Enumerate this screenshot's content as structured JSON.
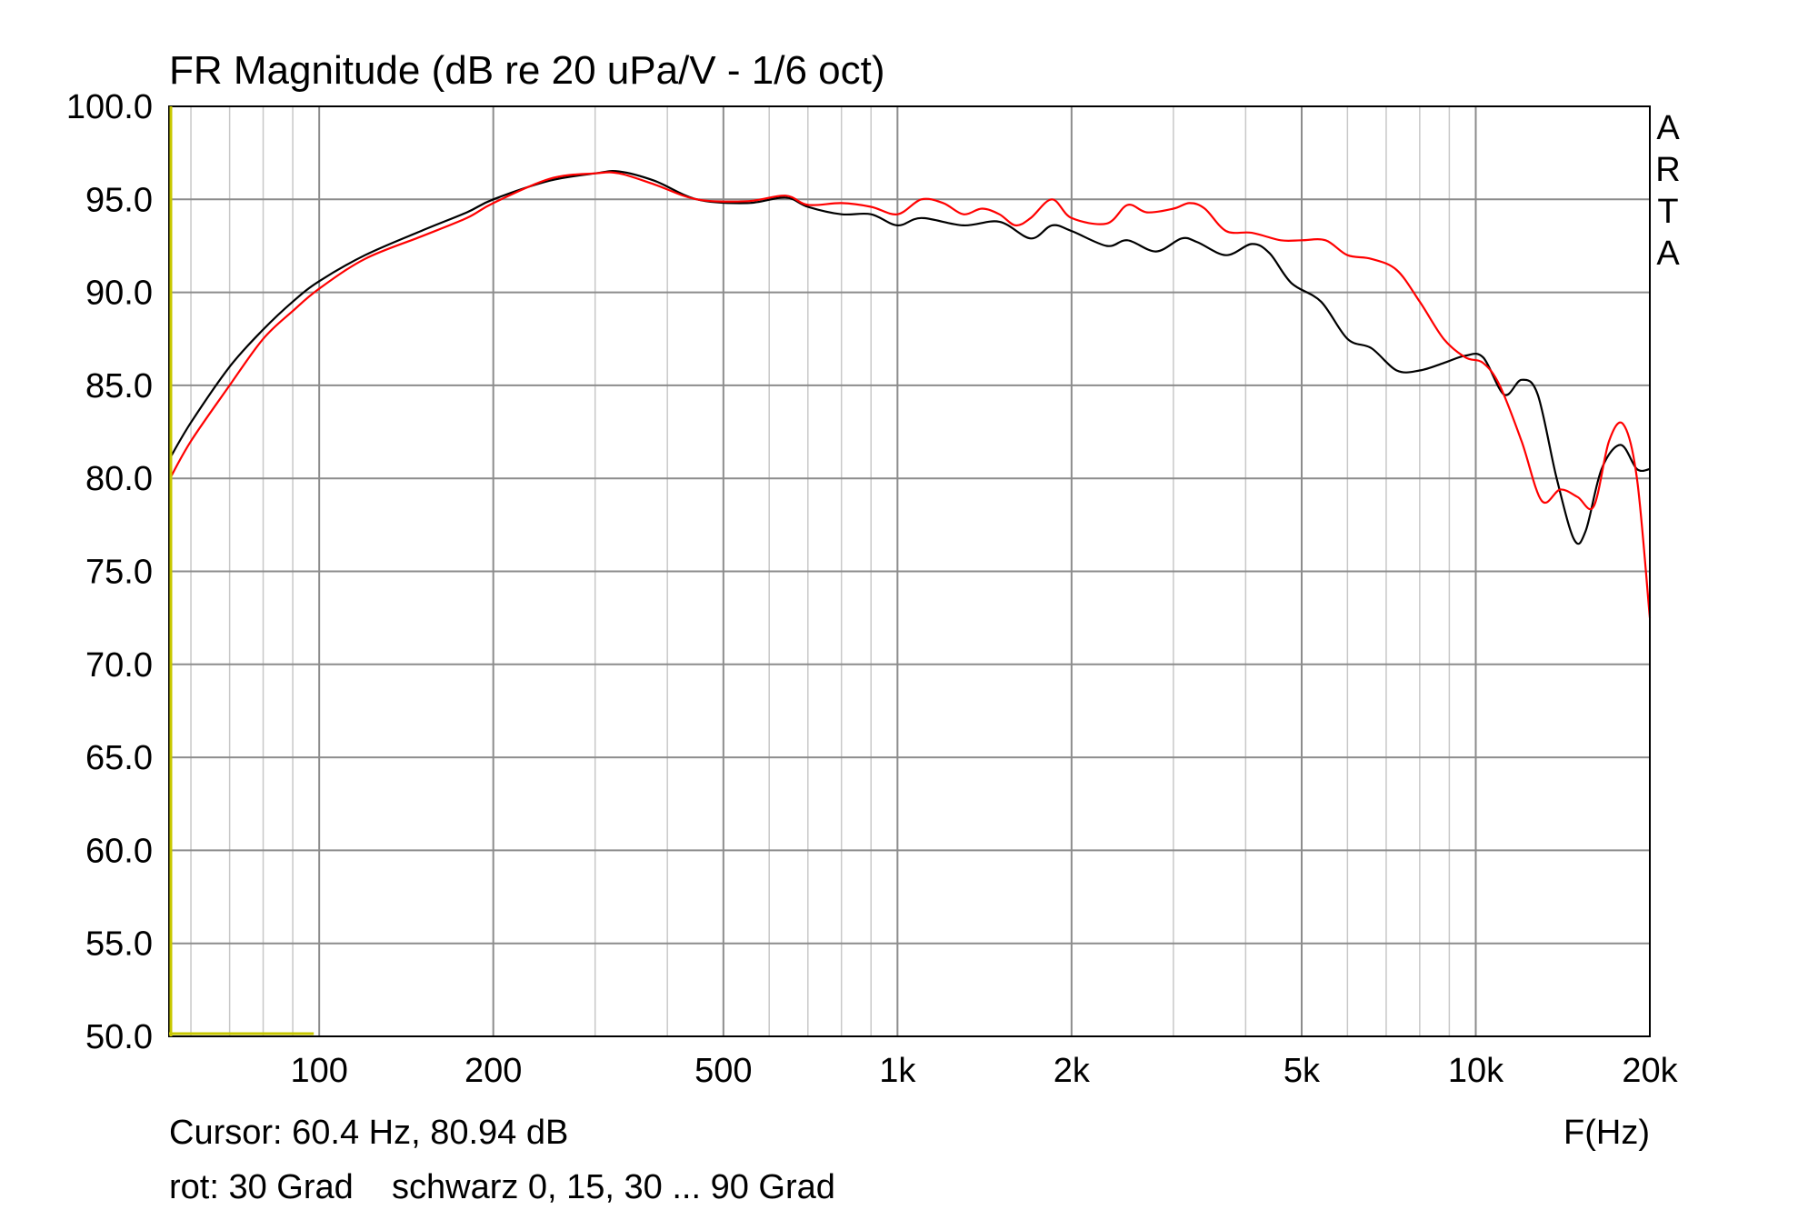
{
  "chart_data": {
    "type": "line",
    "title": "FR Magnitude (dB re 20 uPa/V - 1/6 oct)",
    "xlabel": "F(Hz)",
    "ylabel": "",
    "xscale": "log",
    "xlim": [
      55,
      20000
    ],
    "ylim": [
      50,
      100
    ],
    "grid": true,
    "x_ticks": [
      {
        "value": 100,
        "label": "100"
      },
      {
        "value": 200,
        "label": "200"
      },
      {
        "value": 500,
        "label": "500"
      },
      {
        "value": 1000,
        "label": "1k"
      },
      {
        "value": 2000,
        "label": "2k"
      },
      {
        "value": 5000,
        "label": "5k"
      },
      {
        "value": 10000,
        "label": "10k"
      },
      {
        "value": 20000,
        "label": "20k"
      }
    ],
    "x_minor_grid": [
      60,
      70,
      80,
      90,
      300,
      400,
      600,
      700,
      800,
      900,
      3000,
      4000,
      6000,
      7000,
      8000,
      9000
    ],
    "y_ticks": [
      {
        "value": 100,
        "label": "100.0"
      },
      {
        "value": 95,
        "label": "95.0"
      },
      {
        "value": 90,
        "label": "90.0"
      },
      {
        "value": 85,
        "label": "85.0"
      },
      {
        "value": 80,
        "label": "80.0"
      },
      {
        "value": 75,
        "label": "75.0"
      },
      {
        "value": 70,
        "label": "70.0"
      },
      {
        "value": 65,
        "label": "65.0"
      },
      {
        "value": 60,
        "label": "60.0"
      },
      {
        "value": 55,
        "label": "55.0"
      },
      {
        "value": 50,
        "label": "50.0"
      }
    ],
    "brand_letters": [
      "A",
      "R",
      "T",
      "A"
    ],
    "series": [
      {
        "color": "#000000",
        "x": [
          55,
          60,
          70,
          80,
          90,
          100,
          120,
          150,
          180,
          200,
          250,
          300,
          330,
          380,
          450,
          550,
          640,
          700,
          800,
          900,
          1000,
          1100,
          1300,
          1500,
          1700,
          1850,
          2000,
          2300,
          2500,
          2800,
          3100,
          3300,
          3700,
          4100,
          4400,
          4800,
          5400,
          6000,
          6600,
          7300,
          8000,
          8800,
          9600,
          10300,
          11200,
          12000,
          12800,
          13800,
          14800,
          15500,
          16500,
          17800,
          19000,
          20000
        ],
        "y": [
          81.0,
          83.0,
          86.0,
          88.0,
          89.5,
          90.6,
          92.0,
          93.3,
          94.3,
          95.0,
          96.0,
          96.4,
          96.5,
          96.0,
          95.0,
          94.8,
          95.1,
          94.6,
          94.2,
          94.2,
          93.6,
          94.0,
          93.6,
          93.8,
          92.9,
          93.6,
          93.3,
          92.5,
          92.8,
          92.2,
          92.9,
          92.7,
          92.0,
          92.6,
          92.1,
          90.5,
          89.5,
          87.5,
          87.0,
          85.8,
          85.8,
          86.2,
          86.6,
          86.5,
          84.5,
          85.3,
          84.5,
          80.0,
          76.7,
          77.2,
          80.5,
          81.8,
          80.5,
          80.5
        ]
      },
      {
        "color": "#ff0000",
        "x": [
          55,
          60,
          70,
          80,
          90,
          100,
          120,
          150,
          180,
          200,
          250,
          300,
          330,
          380,
          450,
          550,
          640,
          700,
          800,
          900,
          1000,
          1100,
          1200,
          1300,
          1400,
          1500,
          1600,
          1700,
          1850,
          2000,
          2300,
          2500,
          2700,
          3000,
          3200,
          3400,
          3700,
          4100,
          4600,
          5000,
          5500,
          6000,
          6600,
          7300,
          8000,
          8800,
          9600,
          10300,
          11000,
          12000,
          13000,
          14000,
          15000,
          16000,
          17000,
          18000,
          19000,
          20000
        ],
        "y": [
          79.9,
          82.0,
          85.0,
          87.5,
          89.0,
          90.2,
          91.8,
          93.0,
          94.0,
          94.8,
          96.1,
          96.4,
          96.4,
          95.8,
          95.0,
          94.9,
          95.2,
          94.7,
          94.8,
          94.6,
          94.2,
          95.0,
          94.8,
          94.2,
          94.5,
          94.2,
          93.6,
          94.0,
          95.0,
          94.0,
          93.7,
          94.7,
          94.3,
          94.5,
          94.8,
          94.5,
          93.3,
          93.2,
          92.8,
          92.8,
          92.8,
          92.0,
          91.8,
          91.2,
          89.5,
          87.5,
          86.5,
          86.2,
          85.0,
          82.0,
          78.8,
          79.4,
          79.0,
          78.5,
          82.0,
          82.9,
          80.0,
          72.5
        ]
      }
    ],
    "cursor_text": "Cursor: 60.4 Hz, 80.94 dB",
    "legend_note": "rot: 30 Grad    schwarz 0, 15, 30 ... 90 Grad"
  }
}
